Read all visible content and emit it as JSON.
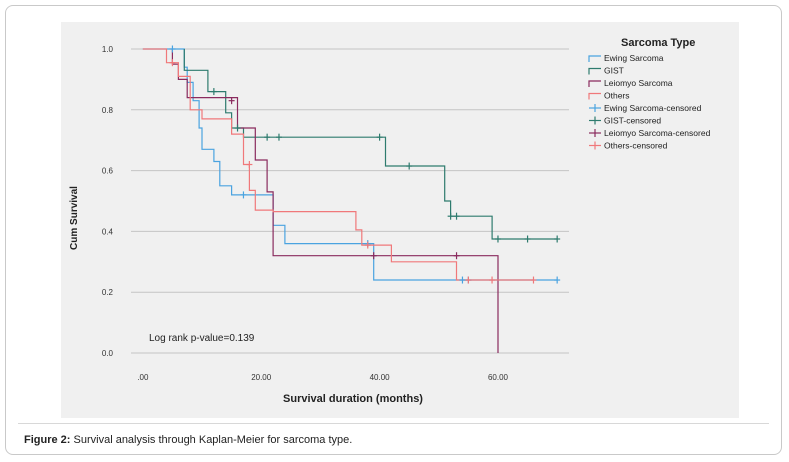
{
  "caption": {
    "label": "Figure 2:",
    "text": "Survival analysis through Kaplan-Meier for sarcoma type."
  },
  "chart_data": {
    "type": "line",
    "subtype": "kaplan-meier step",
    "xlabel": "Survival duration (months)",
    "ylabel": "Cum Survival",
    "xlim": [
      -2,
      72
    ],
    "ylim": [
      0,
      1.0
    ],
    "x_ticks": [
      0,
      20,
      40,
      60
    ],
    "x_tick_labels": [
      ".00",
      "20.00",
      "40.00",
      "60.00"
    ],
    "y_ticks": [
      0.0,
      0.2,
      0.4,
      0.6,
      0.8,
      1.0
    ],
    "y_tick_labels": [
      "0.0",
      "0.2",
      "0.4",
      "0.6",
      "0.8",
      "1.0"
    ],
    "grid": "horizontal",
    "annotation": "Log rank p-value=0.139",
    "legend_title": "Sarcoma Type",
    "legend_position": "right",
    "series": [
      {
        "name": "Ewing Sarcoma",
        "color": "#4aa3e0",
        "steps": [
          [
            0,
            1.0
          ],
          [
            7,
            1.0
          ],
          [
            7,
            0.94
          ],
          [
            7.5,
            0.94
          ],
          [
            7.5,
            0.89
          ],
          [
            8.5,
            0.89
          ],
          [
            8.5,
            0.83
          ],
          [
            9.5,
            0.83
          ],
          [
            9.5,
            0.74
          ],
          [
            10,
            0.74
          ],
          [
            10,
            0.67
          ],
          [
            12,
            0.67
          ],
          [
            12,
            0.63
          ],
          [
            13,
            0.63
          ],
          [
            13,
            0.55
          ],
          [
            15,
            0.55
          ],
          [
            15,
            0.52
          ],
          [
            22,
            0.52
          ],
          [
            22,
            0.42
          ],
          [
            24,
            0.42
          ],
          [
            24,
            0.36
          ],
          [
            39,
            0.36
          ],
          [
            39,
            0.24
          ],
          [
            70,
            0.24
          ]
        ],
        "censored": [
          [
            5,
            1.0
          ],
          [
            17,
            0.52
          ],
          [
            38,
            0.36
          ],
          [
            54,
            0.24
          ],
          [
            55,
            0.24
          ],
          [
            70,
            0.24
          ]
        ]
      },
      {
        "name": "GIST",
        "color": "#2e7b6e",
        "steps": [
          [
            7,
            1.0
          ],
          [
            7,
            0.93
          ],
          [
            11,
            0.93
          ],
          [
            11,
            0.86
          ],
          [
            14,
            0.86
          ],
          [
            14,
            0.79
          ],
          [
            15,
            0.79
          ],
          [
            15,
            0.74
          ],
          [
            17,
            0.74
          ],
          [
            17,
            0.71
          ],
          [
            41,
            0.71
          ],
          [
            41,
            0.615
          ],
          [
            51,
            0.615
          ],
          [
            51,
            0.5
          ],
          [
            52,
            0.5
          ],
          [
            52,
            0.45
          ],
          [
            59,
            0.45
          ],
          [
            59,
            0.375
          ],
          [
            70,
            0.375
          ]
        ],
        "censored": [
          [
            12,
            0.86
          ],
          [
            16,
            0.74
          ],
          [
            21,
            0.71
          ],
          [
            23,
            0.71
          ],
          [
            40,
            0.71
          ],
          [
            45,
            0.615
          ],
          [
            52,
            0.45
          ],
          [
            53,
            0.45
          ],
          [
            60,
            0.375
          ],
          [
            65,
            0.375
          ],
          [
            70,
            0.375
          ]
        ]
      },
      {
        "name": "Leiomyo Sarcoma",
        "color": "#8a2b5e",
        "steps": [
          [
            5,
            1.0
          ],
          [
            5,
            0.95
          ],
          [
            6,
            0.95
          ],
          [
            6,
            0.9
          ],
          [
            7.5,
            0.9
          ],
          [
            7.5,
            0.84
          ],
          [
            16,
            0.84
          ],
          [
            16,
            0.74
          ],
          [
            19,
            0.74
          ],
          [
            19,
            0.635
          ],
          [
            21,
            0.635
          ],
          [
            21,
            0.53
          ],
          [
            22,
            0.53
          ],
          [
            22,
            0.32
          ],
          [
            60,
            0.32
          ],
          [
            60,
            0.0
          ]
        ],
        "censored": [
          [
            15,
            0.83
          ],
          [
            39,
            0.32
          ],
          [
            53,
            0.32
          ]
        ]
      },
      {
        "name": "Others",
        "color": "#f0787a",
        "steps": [
          [
            0,
            1.0
          ],
          [
            4,
            1.0
          ],
          [
            4,
            0.955
          ],
          [
            6,
            0.955
          ],
          [
            6,
            0.91
          ],
          [
            8,
            0.91
          ],
          [
            8,
            0.8
          ],
          [
            10,
            0.8
          ],
          [
            10,
            0.77
          ],
          [
            15,
            0.77
          ],
          [
            15,
            0.72
          ],
          [
            17,
            0.72
          ],
          [
            17,
            0.62
          ],
          [
            18,
            0.62
          ],
          [
            18,
            0.535
          ],
          [
            19,
            0.535
          ],
          [
            19,
            0.47
          ],
          [
            22,
            0.47
          ],
          [
            22,
            0.465
          ],
          [
            36,
            0.465
          ],
          [
            36,
            0.405
          ],
          [
            37,
            0.405
          ],
          [
            37,
            0.355
          ],
          [
            42,
            0.355
          ],
          [
            42,
            0.3
          ],
          [
            53,
            0.3
          ],
          [
            53,
            0.24
          ],
          [
            66,
            0.24
          ]
        ],
        "censored": [
          [
            5,
            0.955
          ],
          [
            18,
            0.62
          ],
          [
            38,
            0.355
          ],
          [
            55,
            0.24
          ],
          [
            59,
            0.24
          ],
          [
            66,
            0.24
          ]
        ]
      }
    ],
    "legend_entries": [
      "Ewing Sarcoma",
      "GIST",
      "Leiomyo Sarcoma",
      "Others",
      "Ewing Sarcoma-censored",
      "GIST-censored",
      "Leiomyo Sarcoma-censored",
      "Others-censored"
    ]
  }
}
